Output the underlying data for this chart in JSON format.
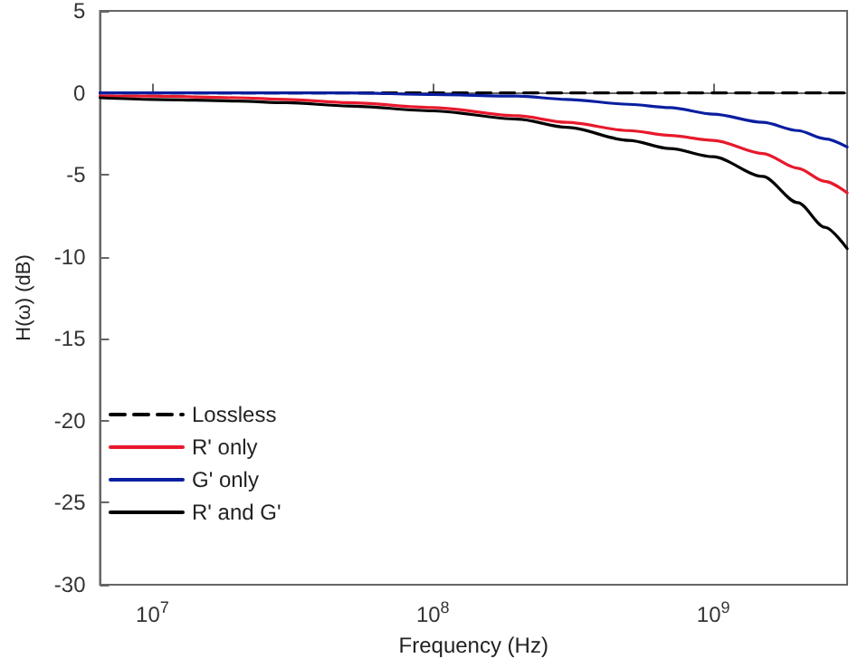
{
  "chart_data": {
    "type": "line",
    "xlabel": "Frequency (Hz)",
    "ylabel": "H(ω) (dB)",
    "log": "x",
    "legend": "bottom left",
    "marker": "none",
    "line_style": "solid",
    "x": [
      6500000,
      10000000,
      20000000,
      30000000,
      50000000,
      100000000,
      200000000,
      300000000,
      500000000,
      700000000,
      1000000000,
      1500000000,
      2000000000,
      2500000000,
      3000000000
    ],
    "xlim": [
      6500000,
      3000000000
    ],
    "xticks": [
      {
        "value": 10000000,
        "label": "10$^{7}$"
      },
      {
        "value": 100000000,
        "label": "10$^{8}$"
      },
      {
        "value": 1000000000,
        "label": "10$^{9}$"
      }
    ],
    "ylim": [
      -30,
      5
    ],
    "yticks": [
      -30,
      -25,
      -20,
      -15,
      -10,
      -5,
      0,
      5
    ],
    "series": [
      {
        "name": "Lossless",
        "color": "#000000",
        "line_style": "dashed",
        "x": [
          6500000,
          3000000000
        ],
        "values": [
          0,
          0
        ]
      },
      {
        "name": "R' only",
        "color": "#e8192c",
        "values": [
          -0.2,
          -0.2,
          -0.3,
          -0.4,
          -0.6,
          -0.9,
          -1.4,
          -1.8,
          -2.3,
          -2.6,
          -2.9,
          -3.7,
          -4.6,
          -5.4,
          -6.1
        ]
      },
      {
        "name": "G' only",
        "color": "#0a1ea0",
        "values": [
          0,
          0,
          0,
          0,
          0,
          -0.1,
          -0.2,
          -0.4,
          -0.7,
          -0.9,
          -1.3,
          -1.8,
          -2.3,
          -2.8,
          -3.3
        ]
      },
      {
        "name": "R' and G'",
        "color": "#000000",
        "values": [
          -0.3,
          -0.4,
          -0.5,
          -0.6,
          -0.8,
          -1.1,
          -1.6,
          -2.1,
          -2.9,
          -3.4,
          -3.9,
          -5.1,
          -6.7,
          -8.2,
          -9.5
        ]
      }
    ]
  }
}
